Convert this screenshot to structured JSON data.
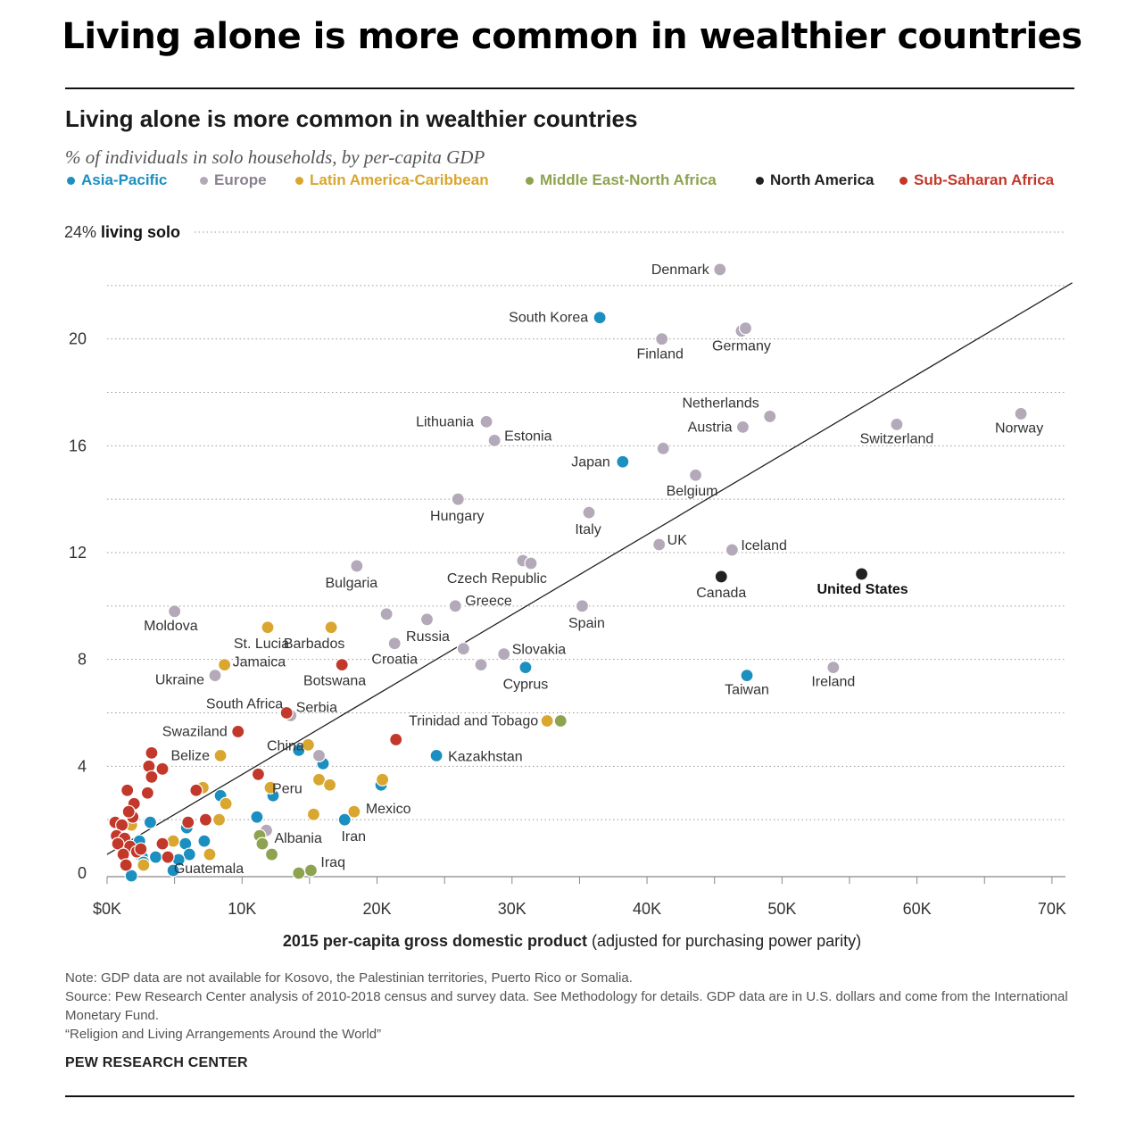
{
  "headline": "Living alone is more common in wealthier countries",
  "title": "Living alone is more common in wealthier countries",
  "subtitle": "% of individuals in solo households, by per-capita GDP",
  "legend": [
    {
      "name": "Asia-Pacific",
      "color": "#1b8fc0"
    },
    {
      "name": "Europe",
      "color": "#b3a9b8"
    },
    {
      "name": "Latin America-Caribbean",
      "color": "#d9a630"
    },
    {
      "name": "Middle East-North Africa",
      "color": "#8ea350"
    },
    {
      "name": "North America",
      "color": "#222222"
    },
    {
      "name": "Sub-Saharan Africa",
      "color": "#c2382b"
    }
  ],
  "x_axis_label_bold": "2015 per-capita gross domestic product",
  "x_axis_label_rest": " (adjusted for purchasing power parity)",
  "notes": [
    "Note: GDP data are not available for Kosovo, the Palestinian territories, Puerto Rico or Somalia.",
    "Source: Pew Research Center analysis of 2010-2018 census and survey data. See Methodology for details. GDP data are in U.S. dollars and come from the International Monetary Fund.",
    "“Religion and Living Arrangements Around the World”"
  ],
  "credit": "PEW RESEARCH CENTER",
  "chart_data": {
    "type": "scatter",
    "title": "Living alone is more common in wealthier countries",
    "subtitle": "% of individuals in solo households, by per-capita GDP",
    "xlabel": "2015 per-capita gross domestic product (adjusted for purchasing power parity)",
    "ylabel": "% living solo",
    "xlim": [
      0,
      71000
    ],
    "ylim": [
      0,
      24
    ],
    "x_ticks": [
      0,
      10000,
      20000,
      30000,
      40000,
      50000,
      60000,
      70000
    ],
    "x_tick_labels": [
      "$0K",
      "10K",
      "20K",
      "30K",
      "40K",
      "50K",
      "60K",
      "70K"
    ],
    "y_ticks": [
      0,
      2,
      4,
      6,
      8,
      10,
      12,
      14,
      16,
      18,
      20,
      22,
      24
    ],
    "y_tick_labels": {
      "0": "0",
      "4": "4",
      "8": "8",
      "12": "12",
      "16": "16",
      "20": "20",
      "24": "24%"
    },
    "y_top_suffix": "living solo",
    "grid": true,
    "legend_position": "top",
    "trendline": {
      "x": [
        0,
        71500
      ],
      "y": [
        0.7,
        22.1
      ]
    },
    "series": [
      {
        "name": "Asia-Pacific",
        "color": "#1b8fc0",
        "points": [
          {
            "label": "South Korea",
            "x": 36500,
            "y": 20.8
          },
          {
            "label": "Japan",
            "x": 38200,
            "y": 15.4
          },
          {
            "label": "Cyprus",
            "x": 31000,
            "y": 7.7
          },
          {
            "label": "Taiwan",
            "x": 47400,
            "y": 7.4
          },
          {
            "label": "Kazakhstan",
            "x": 24400,
            "y": 4.4
          },
          {
            "label": "China",
            "x": 14200,
            "y": 4.6
          },
          {
            "x": 16000,
            "y": 4.1
          },
          {
            "x": 20300,
            "y": 3.3
          },
          {
            "x": 8400,
            "y": 2.9
          },
          {
            "x": 12300,
            "y": 2.9
          },
          {
            "x": 11100,
            "y": 2.1
          },
          {
            "label": "Iran",
            "x": 17600,
            "y": 2.0
          },
          {
            "x": 5900,
            "y": 1.7
          },
          {
            "x": 3200,
            "y": 1.9
          },
          {
            "x": 7200,
            "y": 1.2
          },
          {
            "x": 5800,
            "y": 1.1
          },
          {
            "x": 2400,
            "y": 1.2
          },
          {
            "x": 2600,
            "y": 0.6
          },
          {
            "x": 3600,
            "y": 0.6
          },
          {
            "x": 6100,
            "y": 0.7
          },
          {
            "x": 5300,
            "y": 0.5
          },
          {
            "x": 2700,
            "y": 0.4
          },
          {
            "x": 4900,
            "y": 0.1
          },
          {
            "x": 1800,
            "y": -0.1
          }
        ]
      },
      {
        "name": "Europe",
        "color": "#b3a9b8",
        "points": [
          {
            "label": "Denmark",
            "x": 45400,
            "y": 22.6
          },
          {
            "label": "Germany",
            "x": 47000,
            "y": 20.3
          },
          {
            "x": 47300,
            "y": 20.4
          },
          {
            "label": "Finland",
            "x": 41100,
            "y": 20.0
          },
          {
            "label": "Netherlands",
            "x": 49100,
            "y": 17.1
          },
          {
            "label": "Austria",
            "x": 47100,
            "y": 16.7
          },
          {
            "label": "Switzerland",
            "x": 58500,
            "y": 16.8
          },
          {
            "label": "Norway",
            "x": 67700,
            "y": 17.2
          },
          {
            "label": "Lithuania",
            "x": 28100,
            "y": 16.9
          },
          {
            "label": "Estonia",
            "x": 28700,
            "y": 16.2
          },
          {
            "x": 41200,
            "y": 15.9
          },
          {
            "label": "Belgium",
            "x": 43600,
            "y": 14.9
          },
          {
            "label": "Hungary",
            "x": 26000,
            "y": 14.0
          },
          {
            "label": "Italy",
            "x": 35700,
            "y": 13.5
          },
          {
            "label": "UK",
            "x": 40900,
            "y": 12.3
          },
          {
            "label": "Iceland",
            "x": 46300,
            "y": 12.1
          },
          {
            "label": "Czech Republic",
            "x": 30800,
            "y": 11.7
          },
          {
            "x": 31400,
            "y": 11.6
          },
          {
            "label": "Bulgaria",
            "x": 18500,
            "y": 11.5
          },
          {
            "label": "Greece",
            "x": 25800,
            "y": 10.0
          },
          {
            "label": "Spain",
            "x": 35200,
            "y": 10.0
          },
          {
            "label": "Moldova",
            "x": 5000,
            "y": 9.8
          },
          {
            "x": 20700,
            "y": 9.7
          },
          {
            "label": "Russia",
            "x": 23700,
            "y": 9.5
          },
          {
            "label": "Croatia",
            "x": 21300,
            "y": 8.6
          },
          {
            "x": 26400,
            "y": 8.4
          },
          {
            "label": "Slovakia",
            "x": 29400,
            "y": 8.2
          },
          {
            "x": 27700,
            "y": 7.8
          },
          {
            "label": "Ireland",
            "x": 53800,
            "y": 7.7
          },
          {
            "label": "Ukraine",
            "x": 8000,
            "y": 7.4
          },
          {
            "label": "Serbia",
            "x": 13600,
            "y": 5.9
          },
          {
            "x": 15700,
            "y": 4.4
          },
          {
            "label": "Albania",
            "x": 11800,
            "y": 1.6
          }
        ]
      },
      {
        "name": "Latin America-Caribbean",
        "color": "#d9a630",
        "points": [
          {
            "label": "St. Lucia",
            "x": 11900,
            "y": 9.2
          },
          {
            "label": "Barbados",
            "x": 16600,
            "y": 9.2
          },
          {
            "label": "Jamaica",
            "x": 8700,
            "y": 7.8
          },
          {
            "label": "Trinidad and Tobago",
            "x": 32600,
            "y": 5.7
          },
          {
            "label": "Belize",
            "x": 8400,
            "y": 4.4
          },
          {
            "x": 14900,
            "y": 4.8
          },
          {
            "x": 15700,
            "y": 3.5
          },
          {
            "x": 16500,
            "y": 3.3
          },
          {
            "x": 20400,
            "y": 3.5
          },
          {
            "label": "Peru",
            "x": 12100,
            "y": 3.2
          },
          {
            "x": 7100,
            "y": 3.2
          },
          {
            "x": 8800,
            "y": 2.6
          },
          {
            "label": "Mexico",
            "x": 18300,
            "y": 2.3
          },
          {
            "x": 15300,
            "y": 2.2
          },
          {
            "x": 8300,
            "y": 2.0
          },
          {
            "x": 1800,
            "y": 1.8
          },
          {
            "x": 4900,
            "y": 1.2
          },
          {
            "label": "Guatemala",
            "x": 7600,
            "y": 0.7
          },
          {
            "x": 2700,
            "y": 0.3
          }
        ]
      },
      {
        "name": "Middle East-North Africa",
        "color": "#8ea350",
        "points": [
          {
            "x": 33600,
            "y": 5.7
          },
          {
            "x": 11300,
            "y": 1.4
          },
          {
            "x": 11500,
            "y": 1.1
          },
          {
            "x": 12200,
            "y": 0.7
          },
          {
            "label": "Iraq",
            "x": 15100,
            "y": 0.1
          },
          {
            "x": 14200,
            "y": 0.0
          }
        ]
      },
      {
        "name": "North America",
        "color": "#222222",
        "points": [
          {
            "label": "Canada",
            "x": 45500,
            "y": 11.1
          },
          {
            "label": "United States",
            "x": 55900,
            "y": 11.2
          }
        ]
      },
      {
        "name": "Sub-Saharan Africa",
        "color": "#c2382b",
        "points": [
          {
            "label": "Botswana",
            "x": 17400,
            "y": 7.8
          },
          {
            "label": "South Africa",
            "x": 13300,
            "y": 6.0
          },
          {
            "label": "Swaziland",
            "x": 9700,
            "y": 5.3
          },
          {
            "x": 21400,
            "y": 5.0
          },
          {
            "x": 11200,
            "y": 3.7
          },
          {
            "x": 3300,
            "y": 4.5
          },
          {
            "x": 3100,
            "y": 4.0
          },
          {
            "x": 4100,
            "y": 3.9
          },
          {
            "x": 3300,
            "y": 3.6
          },
          {
            "x": 1500,
            "y": 3.1
          },
          {
            "x": 3000,
            "y": 3.0
          },
          {
            "x": 6600,
            "y": 3.1
          },
          {
            "x": 2000,
            "y": 2.6
          },
          {
            "x": 1900,
            "y": 2.1
          },
          {
            "x": 1600,
            "y": 2.3
          },
          {
            "x": 600,
            "y": 1.9
          },
          {
            "x": 1100,
            "y": 1.8
          },
          {
            "x": 6000,
            "y": 1.9
          },
          {
            "x": 7300,
            "y": 2.0
          },
          {
            "x": 700,
            "y": 1.4
          },
          {
            "x": 1300,
            "y": 1.3
          },
          {
            "x": 4100,
            "y": 1.1
          },
          {
            "x": 800,
            "y": 1.1
          },
          {
            "x": 1700,
            "y": 1.0
          },
          {
            "x": 2200,
            "y": 0.8
          },
          {
            "x": 1200,
            "y": 0.7
          },
          {
            "x": 4500,
            "y": 0.6
          },
          {
            "x": 1400,
            "y": 0.3
          },
          {
            "x": 2500,
            "y": 0.9
          }
        ]
      }
    ]
  }
}
